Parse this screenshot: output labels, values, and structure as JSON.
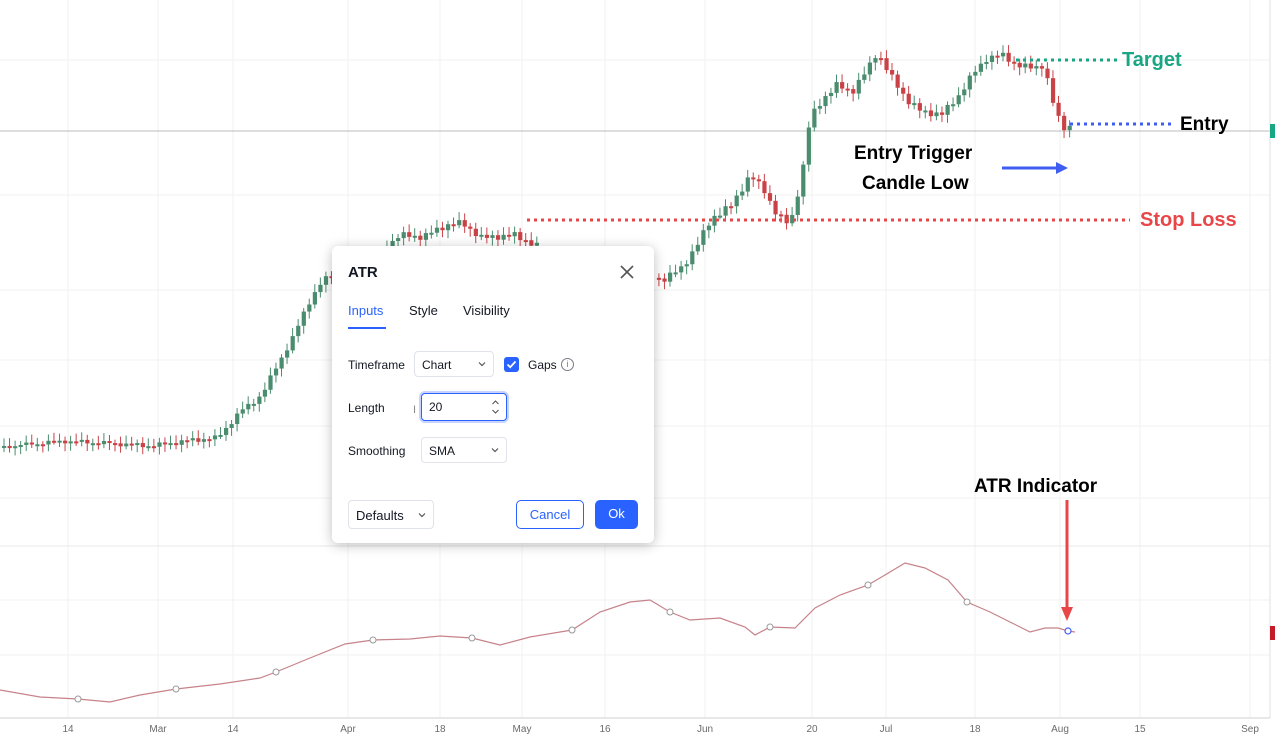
{
  "annotations": {
    "target": "Target",
    "entry": "Entry",
    "entry_trigger_line1": "Entry Trigger",
    "entry_trigger_line2": "Candle Low",
    "stop_loss": "Stop Loss",
    "atr_indicator": "ATR Indicator"
  },
  "colors": {
    "target": "#18a683",
    "entry_line": "#3f5ef1",
    "stop_loss": "#e8474a",
    "candle_up": "#4a8c6e",
    "candle_down": "#c94246",
    "atr_line": "#c7828a",
    "accent": "#2962ff"
  },
  "x_axis": {
    "labels": [
      "14",
      "Mar",
      "14",
      "Apr",
      "18",
      "May",
      "16",
      "Jun",
      "20",
      "Jul",
      "18",
      "Aug",
      "15",
      "Sep"
    ]
  },
  "dialog": {
    "title": "ATR",
    "close_icon": "close-icon",
    "tabs": [
      {
        "label": "Inputs",
        "active": true
      },
      {
        "label": "Style",
        "active": false
      },
      {
        "label": "Visibility",
        "active": false
      }
    ],
    "timeframe": {
      "label": "Timeframe",
      "value": "Chart"
    },
    "gaps": {
      "label": "Gaps",
      "checked": true
    },
    "length": {
      "label": "Length",
      "value": "20"
    },
    "smoothing": {
      "label": "Smoothing",
      "value": "SMA"
    },
    "defaults_label": "Defaults",
    "cancel_label": "Cancel",
    "ok_label": "Ok"
  }
}
